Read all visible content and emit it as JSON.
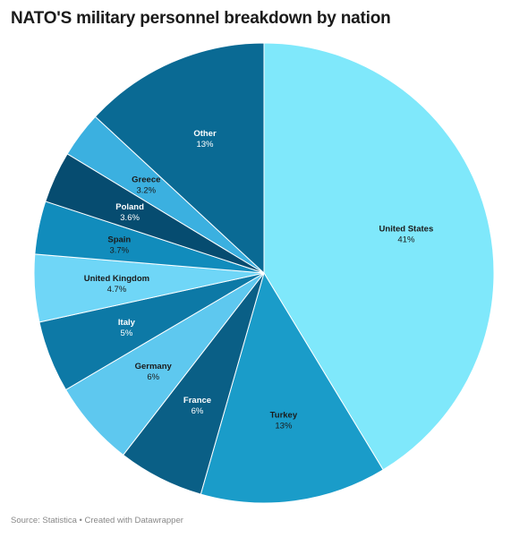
{
  "title": "NATO'S military personnel breakdown by nation",
  "footer": {
    "source": "Source: Statistica",
    "separator": " • ",
    "credit": "Created with Datawrapper"
  },
  "chart_data": {
    "type": "pie",
    "title": "NATO'S military personnel breakdown by nation",
    "slices": [
      {
        "label": "United States",
        "value": 41,
        "display": "41%",
        "color": "#7fe8fb",
        "text_color": "#1a1a1a"
      },
      {
        "label": "Turkey",
        "value": 13,
        "display": "13%",
        "color": "#1a9cc9",
        "text_color": "#1a1a1a"
      },
      {
        "label": "France",
        "value": 6,
        "display": "6%",
        "color": "#0a5f86",
        "text_color": "#ffffff"
      },
      {
        "label": "Germany",
        "value": 6,
        "display": "6%",
        "color": "#5ec8ef",
        "text_color": "#1a1a1a"
      },
      {
        "label": "Italy",
        "value": 5,
        "display": "5%",
        "color": "#0d79a6",
        "text_color": "#ffffff"
      },
      {
        "label": "United Kingdom",
        "value": 4.7,
        "display": "4.7%",
        "color": "#6fd6f7",
        "text_color": "#1a1a1a"
      },
      {
        "label": "Spain",
        "value": 3.7,
        "display": "3.7%",
        "color": "#118cbc",
        "text_color": "#1a1a1a"
      },
      {
        "label": "Poland",
        "value": 3.6,
        "display": "3.6%",
        "color": "#064c70",
        "text_color": "#ffffff"
      },
      {
        "label": "Greece",
        "value": 3.2,
        "display": "3.2%",
        "color": "#3bb0e0",
        "text_color": "#1a1a1a"
      },
      {
        "label": "Other",
        "value": 13,
        "display": "13%",
        "color": "#0a6a94",
        "text_color": "#ffffff"
      }
    ]
  }
}
